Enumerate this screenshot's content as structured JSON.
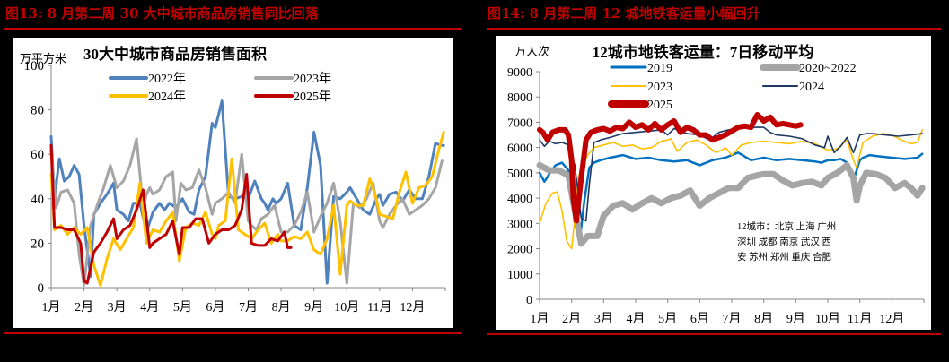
{
  "figures": [
    {
      "title": "图13:  8 月第二周 30 大中城市商品房销售同比回落"
    },
    {
      "title": "图14:  8 月第二周 12 城地铁客运量小幅回升"
    }
  ],
  "chart_data": [
    {
      "type": "line",
      "title": "30大中城市商品房销售面积",
      "ylabel": "万平方米",
      "xlabel": "",
      "ylim": [
        0,
        100
      ],
      "yticks": [
        "0",
        "20",
        "40",
        "60",
        "80",
        "100"
      ],
      "categories": [
        "1月",
        "2月",
        "3月",
        "4月",
        "5月",
        "6月",
        "7月",
        "8月",
        "9月",
        "10月",
        "11月",
        "12月"
      ],
      "grid": false,
      "legend_position": "top, two columns",
      "series": [
        {
          "name": "2022年",
          "color": "#4f81bd",
          "x": [
            0,
            0.1,
            0.25,
            0.4,
            0.55,
            0.7,
            0.85,
            1.0,
            1.2,
            1.3,
            1.5,
            1.7,
            1.9,
            2.0,
            2.2,
            2.35,
            2.5,
            2.7,
            2.9,
            3.1,
            3.3,
            3.45,
            3.6,
            3.8,
            4.0,
            4.2,
            4.35,
            4.5,
            4.7,
            4.9,
            5.0,
            5.2,
            5.4,
            5.6,
            5.8,
            5.9,
            6.05,
            6.2,
            6.4,
            6.5,
            6.6,
            6.75,
            6.85,
            7.0,
            7.2,
            7.4,
            7.6,
            7.8,
            8.0,
            8.2,
            8.4,
            8.6,
            8.8,
            9.0,
            9.1,
            9.3,
            9.5,
            9.7,
            9.9,
            10.0,
            10.1,
            10.3,
            10.5,
            10.7,
            10.9,
            11.1,
            11.3,
            11.5,
            11.7,
            11.85,
            11.95
          ],
          "values": [
            68,
            40,
            58,
            48,
            50,
            55,
            51,
            28,
            5,
            33,
            38,
            42,
            47,
            35,
            33,
            30,
            38,
            38,
            25,
            34,
            38,
            35,
            38,
            36,
            40,
            34,
            33,
            44,
            50,
            74,
            72,
            84,
            41,
            40,
            41,
            43,
            42,
            48,
            40,
            38,
            35,
            40,
            38,
            40,
            47,
            28,
            26,
            45,
            70,
            55,
            2,
            41,
            40,
            43,
            45,
            40,
            35,
            33,
            40,
            42,
            37,
            42,
            43,
            39,
            44,
            40,
            40,
            50,
            65,
            64,
            64
          ]
        },
        {
          "name": "2023年",
          "color": "#a5a5a5",
          "x": [
            0,
            0.15,
            0.3,
            0.5,
            0.7,
            0.85,
            1.0,
            1.2,
            1.4,
            1.6,
            1.8,
            2.0,
            2.2,
            2.4,
            2.6,
            2.8,
            2.9,
            3.0,
            3.1,
            3.3,
            3.5,
            3.7,
            3.8,
            3.95,
            4.1,
            4.3,
            4.5,
            4.7,
            4.9,
            5.0,
            5.2,
            5.4,
            5.6,
            5.8,
            6.0,
            6.1,
            6.25,
            6.4,
            6.6,
            6.8,
            7.0,
            7.2,
            7.4,
            7.6,
            7.8,
            8.0,
            8.2,
            8.4,
            8.6,
            8.8,
            9.0,
            9.2,
            9.4,
            9.6,
            9.8,
            10.0,
            10.1,
            10.3,
            10.5,
            10.7,
            10.9,
            11.1,
            11.3,
            11.5,
            11.7,
            11.9
          ],
          "values": [
            62,
            36,
            43,
            44,
            38,
            15,
            1,
            28,
            37,
            45,
            55,
            45,
            48,
            55,
            67,
            36,
            42,
            45,
            42,
            44,
            50,
            52,
            30,
            47,
            44,
            45,
            53,
            45,
            33,
            38,
            40,
            43,
            38,
            60,
            30,
            28,
            26,
            31,
            33,
            37,
            25,
            25,
            28,
            34,
            43,
            25,
            32,
            38,
            47,
            30,
            2,
            38,
            36,
            40,
            47,
            30,
            27,
            33,
            37,
            40,
            33,
            35,
            37,
            40,
            45,
            57
          ]
        },
        {
          "name": "2024年",
          "color": "#ffc000",
          "x": [
            0,
            0.1,
            0.3,
            0.5,
            0.7,
            0.9,
            1.1,
            1.3,
            1.5,
            1.7,
            1.9,
            2.1,
            2.3,
            2.5,
            2.7,
            2.9,
            3.1,
            3.3,
            3.5,
            3.7,
            3.9,
            4.1,
            4.3,
            4.5,
            4.7,
            4.9,
            5.0,
            5.1,
            5.3,
            5.5,
            5.7,
            5.9,
            6.1,
            6.3,
            6.5,
            6.7,
            6.9,
            7.0,
            7.2,
            7.4,
            7.6,
            7.8,
            8.0,
            8.2,
            8.4,
            8.6,
            8.8,
            9.0,
            9.1,
            9.3,
            9.5,
            9.7,
            9.9,
            10.0,
            10.2,
            10.4,
            10.6,
            10.8,
            11.0,
            11.2,
            11.4,
            11.6,
            11.8,
            11.95
          ],
          "values": [
            51,
            26,
            28,
            24,
            27,
            24,
            27,
            10,
            1,
            13,
            22,
            17,
            22,
            27,
            47,
            20,
            26,
            25,
            30,
            34,
            12,
            27,
            29,
            28,
            34,
            24,
            22,
            28,
            30,
            58,
            26,
            24,
            22,
            26,
            29,
            20,
            24,
            21,
            21,
            23,
            22,
            25,
            17,
            15,
            22,
            37,
            6,
            37,
            39,
            37,
            37,
            49,
            40,
            33,
            32,
            31,
            43,
            52,
            38,
            45,
            46,
            50,
            62,
            70
          ]
        },
        {
          "name": "2025年",
          "color": "#c00000",
          "x": [
            0,
            0.1,
            0.3,
            0.5,
            0.7,
            0.9,
            1.0,
            1.1,
            1.3,
            1.5,
            1.7,
            1.9,
            2.0,
            2.2,
            2.4,
            2.6,
            2.8,
            3.0,
            3.1,
            3.3,
            3.5,
            3.7,
            3.9,
            4.0,
            4.2,
            4.4,
            4.6,
            4.8,
            5.0,
            5.2,
            5.4,
            5.6,
            5.8,
            5.95,
            6.1,
            6.3,
            6.5,
            6.7,
            6.9,
            7.1,
            7.2,
            7.3
          ],
          "values": [
            64,
            27,
            27,
            26,
            26,
            20,
            3,
            2,
            16,
            20,
            25,
            31,
            22,
            26,
            28,
            35,
            44,
            18,
            20,
            22,
            24,
            30,
            15,
            27,
            27,
            31,
            31,
            20,
            24,
            26,
            26,
            28,
            35,
            51,
            20,
            19,
            19,
            22,
            21,
            25,
            18,
            18
          ]
        }
      ]
    },
    {
      "type": "line",
      "title": "12城市地铁客运量：7日移动平均",
      "ylabel": "万人次",
      "xlabel": "",
      "ylim": [
        0,
        9000
      ],
      "yticks": [
        "0",
        "1000",
        "2000",
        "3000",
        "4000",
        "5000",
        "6000",
        "7000",
        "8000",
        "9000"
      ],
      "categories": [
        "1月",
        "2月",
        "3月",
        "4月",
        "5月",
        "6月",
        "7月",
        "8月",
        "9月",
        "10月",
        "11月",
        "12月"
      ],
      "grid": false,
      "legend_position": "top, two columns",
      "annotation": "12城市：北京 上海 广州 深圳 成都 南京 武汉 西安 苏州 郑州 重庆 合肥",
      "annotation_lines": [
        "12城市：北京 上海 广州",
        "深圳 成都 南京 武汉 西",
        "安 苏州 郑州 重庆 合肥"
      ],
      "series": [
        {
          "name": "2019",
          "color": "#0070c0",
          "x": [
            0,
            0.15,
            0.3,
            0.5,
            0.7,
            0.9,
            1.1,
            1.25,
            1.4,
            1.55,
            1.7,
            1.9,
            2.2,
            2.6,
            3.0,
            3.4,
            3.8,
            4.2,
            4.6,
            5.0,
            5.4,
            5.8,
            6.2,
            6.6,
            7.0,
            7.4,
            7.8,
            8.2,
            8.6,
            8.8,
            9.0,
            9.2,
            9.4,
            9.6,
            9.8,
            10.0,
            10.1,
            10.3,
            10.6,
            11.0,
            11.4,
            11.8,
            11.95
          ],
          "values": [
            5000,
            4650,
            4950,
            5300,
            5400,
            5100,
            3000,
            2300,
            3900,
            5200,
            5400,
            5500,
            5600,
            5700,
            5550,
            5600,
            5500,
            5450,
            5500,
            5300,
            5500,
            5600,
            5800,
            5500,
            5600,
            5500,
            5550,
            5500,
            5450,
            5400,
            5500,
            5500,
            5550,
            5400,
            4700,
            5500,
            5600,
            5700,
            5650,
            5600,
            5550,
            5600,
            5750
          ]
        },
        {
          "name": "2020~2022",
          "color": "#a5a5a5",
          "x": [
            0,
            0.3,
            0.6,
            0.9,
            1.1,
            1.3,
            1.5,
            1.8,
            2.0,
            2.3,
            2.6,
            2.9,
            3.2,
            3.5,
            3.8,
            4.1,
            4.4,
            4.7,
            5.0,
            5.3,
            5.6,
            5.9,
            6.2,
            6.5,
            6.8,
            7.0,
            7.3,
            7.6,
            7.9,
            8.2,
            8.5,
            8.8,
            9.0,
            9.3,
            9.6,
            9.8,
            9.9,
            10.0,
            10.2,
            10.5,
            10.8,
            11.1,
            11.4,
            11.6,
            11.8,
            11.95
          ],
          "values": [
            5300,
            5100,
            5100,
            4900,
            3500,
            2200,
            2500,
            2500,
            3300,
            3700,
            3800,
            3550,
            3800,
            4000,
            3800,
            4000,
            4100,
            4300,
            3700,
            4000,
            4200,
            4400,
            4400,
            4800,
            4900,
            4950,
            4950,
            4700,
            4500,
            4600,
            4650,
            4500,
            4800,
            5000,
            5300,
            4800,
            3900,
            4500,
            5000,
            4950,
            4800,
            4400,
            4600,
            4400,
            4100,
            4400
          ]
        },
        {
          "name": "2023",
          "color": "#ffc000",
          "x": [
            0,
            0.2,
            0.4,
            0.55,
            0.7,
            0.85,
            1.0,
            1.1,
            1.2,
            1.35,
            1.5,
            1.7,
            2.0,
            2.3,
            2.6,
            2.9,
            3.2,
            3.5,
            3.8,
            4.0,
            4.1,
            4.3,
            4.6,
            4.9,
            5.2,
            5.5,
            5.7,
            5.8,
            6.0,
            6.3,
            6.6,
            7.0,
            7.4,
            7.8,
            8.2,
            8.6,
            9.0,
            9.3,
            9.6,
            9.8,
            9.9,
            10.1,
            10.4,
            10.7,
            11.0,
            11.3,
            11.6,
            11.8,
            11.95
          ],
          "values": [
            3000,
            3800,
            4200,
            4250,
            3500,
            2300,
            2000,
            3200,
            4800,
            5300,
            5700,
            6000,
            6100,
            6200,
            6050,
            6100,
            5950,
            6000,
            6250,
            6300,
            6350,
            5850,
            6200,
            6300,
            6100,
            5800,
            5900,
            6000,
            5700,
            6100,
            6200,
            6250,
            6200,
            6150,
            6250,
            6150,
            5900,
            5950,
            6300,
            5500,
            5200,
            6200,
            6450,
            6550,
            6500,
            6300,
            6150,
            6200,
            6700
          ]
        },
        {
          "name": "2024",
          "color": "#1f3864",
          "x": [
            0,
            0.15,
            0.3,
            0.5,
            0.7,
            0.9,
            1.1,
            1.3,
            1.45,
            1.55,
            1.7,
            1.9,
            2.2,
            2.6,
            3.0,
            3.4,
            3.8,
            4.0,
            4.2,
            4.6,
            5.0,
            5.3,
            5.6,
            5.9,
            6.2,
            6.6,
            7.0,
            7.2,
            7.4,
            7.8,
            8.2,
            8.6,
            8.9,
            9.0,
            9.2,
            9.4,
            9.6,
            9.8,
            10.0,
            10.2,
            10.4,
            10.8,
            11.2,
            11.6,
            11.95
          ],
          "values": [
            6300,
            6050,
            6250,
            6150,
            6200,
            6100,
            5300,
            3200,
            3100,
            4500,
            6200,
            6300,
            6400,
            6550,
            6600,
            6650,
            6700,
            6500,
            6750,
            6550,
            6500,
            6300,
            6600,
            6700,
            6750,
            6800,
            6800,
            6600,
            6500,
            6450,
            6350,
            6100,
            6000,
            6450,
            5800,
            6050,
            6400,
            5800,
            6500,
            6550,
            6550,
            6500,
            6450,
            6500,
            6550
          ]
        },
        {
          "name": "2025",
          "color": "#c00000",
          "x": [
            0,
            0.1,
            0.25,
            0.4,
            0.6,
            0.8,
            0.9,
            1.0,
            1.05,
            1.15,
            1.3,
            1.45,
            1.6,
            1.8,
            2.0,
            2.2,
            2.4,
            2.6,
            2.8,
            3.0,
            3.2,
            3.4,
            3.6,
            3.8,
            4.0,
            4.2,
            4.4,
            4.6,
            4.8,
            5.0,
            5.2,
            5.4,
            5.6,
            5.8,
            6.0,
            6.2,
            6.4,
            6.6,
            6.8,
            7.0,
            7.2,
            7.4,
            7.6,
            7.8,
            8.0,
            8.15
          ],
          "values": [
            6700,
            6600,
            6300,
            6600,
            6700,
            6700,
            6500,
            5500,
            4000,
            3100,
            4800,
            6300,
            6600,
            6700,
            6750,
            6650,
            6800,
            6750,
            7000,
            6800,
            6900,
            6700,
            6950,
            6700,
            6900,
            7050,
            6600,
            6800,
            6700,
            6500,
            6500,
            6300,
            6400,
            6500,
            6650,
            6800,
            6850,
            6800,
            7300,
            7050,
            7200,
            6900,
            6950,
            6900,
            6850,
            6900
          ]
        }
      ]
    }
  ]
}
